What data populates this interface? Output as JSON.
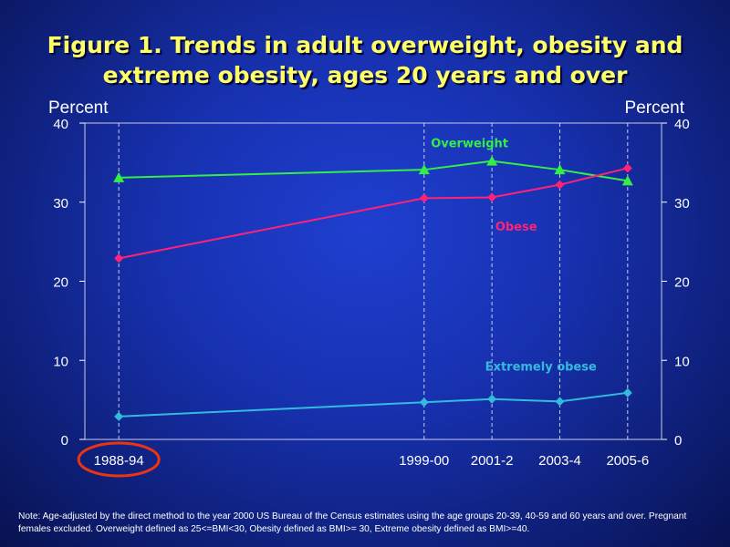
{
  "title": {
    "line1": "Figure 1. Trends in adult overweight, obesity and",
    "line2": "extreme obesity, ages 20 years and over"
  },
  "note": "Note: Age-adjusted by the direct method to the year 2000 US Bureau of the Census estimates using the age groups 20-39, 40-59 and 60 years and over. Pregnant females excluded. Overweight defined as 25<=BMI<30, Obesity defined as BMI>= 30, Extreme obesity defined as BMI>=40.",
  "colors": {
    "overweight": "#33ee44",
    "obese": "#ff2277",
    "extremely_obese": "#33bbdd",
    "title": "#ffff66",
    "highlight_circle": "#ee3311"
  },
  "chart_data": {
    "type": "line",
    "ylabel_left": "Percent",
    "ylabel_right": "Percent",
    "ylim": [
      0,
      40
    ],
    "yticks": [
      "0",
      "10",
      "20",
      "30",
      "40"
    ],
    "x_positions": [
      1991,
      2000,
      2002,
      2004,
      2006
    ],
    "categories": [
      "1988-94",
      "1999-00",
      "2001-2",
      "2003-4",
      "2005-6"
    ],
    "xlim": [
      1990,
      2007
    ],
    "grid": "vertical dashed at ticks",
    "highlighted_category": "1988-94",
    "series": [
      {
        "name": "Overweight",
        "key": "overweight",
        "marker": "triangle",
        "values": [
          33.1,
          34.1,
          35.2,
          34.1,
          32.7
        ],
        "label_x": 2000.2,
        "label_y": 37.5
      },
      {
        "name": "Obese",
        "key": "obese",
        "marker": "diamond",
        "values": [
          22.9,
          30.5,
          30.6,
          32.2,
          34.3
        ],
        "label_x": 2002.1,
        "label_y": 27.0
      },
      {
        "name": "Extremely obese",
        "key": "extremely_obese",
        "marker": "diamond",
        "values": [
          2.9,
          4.7,
          5.1,
          4.8,
          5.9
        ],
        "label_x": 2001.8,
        "label_y": 9.3
      }
    ]
  }
}
